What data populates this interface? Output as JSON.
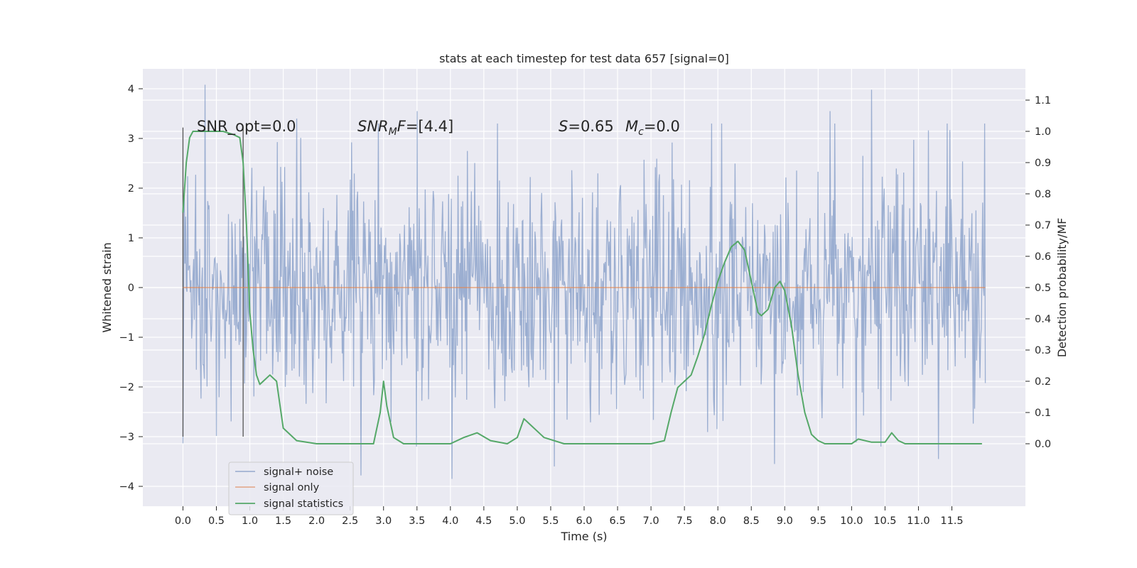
{
  "chart_data": {
    "type": "line",
    "title": "stats at each timestep for test data 657 [signal=0]",
    "xlabel": "Time (s)",
    "ylabel": "Whitened strain",
    "ylabel_right": "Detection probability/MF",
    "xlim": [
      -0.6,
      12.6
    ],
    "ylim": [
      -4.4,
      4.4
    ],
    "ylim_right": [
      -0.2,
      1.2
    ],
    "x_ticks": [
      "0.0",
      "0.5",
      "1.0",
      "1.5",
      "2.0",
      "2.5",
      "3.0",
      "3.5",
      "4.0",
      "4.5",
      "5.0",
      "5.5",
      "6.0",
      "6.5",
      "7.0",
      "7.5",
      "8.0",
      "8.5",
      "9.0",
      "9.5",
      "10.0",
      "10.5",
      "11.0",
      "11.5"
    ],
    "y_ticks_left": [
      "4",
      "3",
      "2",
      "1",
      "0",
      "−1",
      "−2",
      "−3",
      "−4"
    ],
    "y_ticks_right": [
      "1.1",
      "1.0",
      "0.9",
      "0.8",
      "0.7",
      "0.6",
      "0.5",
      "0.4",
      "0.3",
      "0.2",
      "0.1",
      "0.0"
    ],
    "grid": true,
    "legend_placement": "lower-left",
    "annotations": {
      "snr_opt": "SNR_opt=0.0",
      "snr_mf_main": "SNR",
      "snr_mf_sub": "M",
      "snr_mf_rest": "F=[4.4]",
      "s_main": "S",
      "s_rest": "=0.65",
      "mc_main": "M",
      "mc_sub": "c",
      "mc_rest": "=0.0"
    },
    "vertical_markers": [
      0.0,
      0.9
    ],
    "series": [
      {
        "name": "signal+ noise",
        "color": "#4c72b0",
        "description_stats": {
          "x_range": [
            0.0,
            12.0
          ],
          "approx_envelope": [
            -3.8,
            4.1
          ],
          "sample_count": 1200
        },
        "peaks": [
          [
            0.33,
            4.08
          ],
          [
            10.3,
            3.98
          ],
          [
            4.02,
            -3.85
          ],
          [
            2.66,
            -3.78
          ],
          [
            1.7,
            3.4
          ],
          [
            3.5,
            3.55
          ],
          [
            8.85,
            -3.55
          ],
          [
            11.3,
            -3.45
          ],
          [
            9.68,
            3.55
          ],
          [
            5.55,
            -3.6
          ]
        ]
      },
      {
        "name": "signal only",
        "color": "#dd8452",
        "x": [
          0.0,
          12.0
        ],
        "y": [
          0.0,
          0.0
        ]
      },
      {
        "name": "signal statistics",
        "color": "#55a868",
        "axis": "right",
        "x": [
          0.0,
          0.05,
          0.1,
          0.15,
          0.25,
          0.4,
          0.6,
          0.75,
          0.85,
          0.9,
          0.95,
          1.0,
          1.05,
          1.1,
          1.15,
          1.2,
          1.3,
          1.4,
          1.5,
          1.7,
          2.0,
          2.5,
          2.85,
          2.95,
          3.0,
          3.05,
          3.15,
          3.3,
          3.6,
          4.0,
          4.2,
          4.4,
          4.6,
          4.85,
          5.0,
          5.1,
          5.2,
          5.4,
          5.7,
          6.1,
          6.5,
          7.0,
          7.2,
          7.3,
          7.4,
          7.5,
          7.6,
          7.7,
          7.8,
          7.9,
          8.0,
          8.1,
          8.2,
          8.3,
          8.4,
          8.5,
          8.6,
          8.65,
          8.75,
          8.85,
          8.93,
          9.0,
          9.1,
          9.2,
          9.3,
          9.4,
          9.5,
          9.6,
          9.8,
          10.0,
          10.1,
          10.3,
          10.5,
          10.6,
          10.7,
          10.8,
          11.0,
          11.5,
          11.95
        ],
        "y": [
          0.74,
          0.9,
          0.98,
          1.0,
          1.0,
          1.0,
          1.0,
          0.99,
          0.98,
          0.9,
          0.7,
          0.42,
          0.3,
          0.22,
          0.19,
          0.2,
          0.22,
          0.2,
          0.05,
          0.01,
          0.0,
          0.0,
          0.0,
          0.1,
          0.2,
          0.12,
          0.02,
          0.0,
          0.0,
          0.0,
          0.02,
          0.035,
          0.01,
          0.0,
          0.02,
          0.08,
          0.06,
          0.02,
          0.0,
          0.0,
          0.0,
          0.0,
          0.01,
          0.1,
          0.18,
          0.2,
          0.22,
          0.28,
          0.35,
          0.44,
          0.52,
          0.58,
          0.63,
          0.648,
          0.62,
          0.52,
          0.42,
          0.41,
          0.43,
          0.5,
          0.52,
          0.49,
          0.38,
          0.22,
          0.1,
          0.03,
          0.01,
          0.0,
          0.0,
          0.0,
          0.015,
          0.005,
          0.005,
          0.035,
          0.01,
          0.0,
          0.0,
          0.0,
          0.0
        ]
      }
    ]
  }
}
